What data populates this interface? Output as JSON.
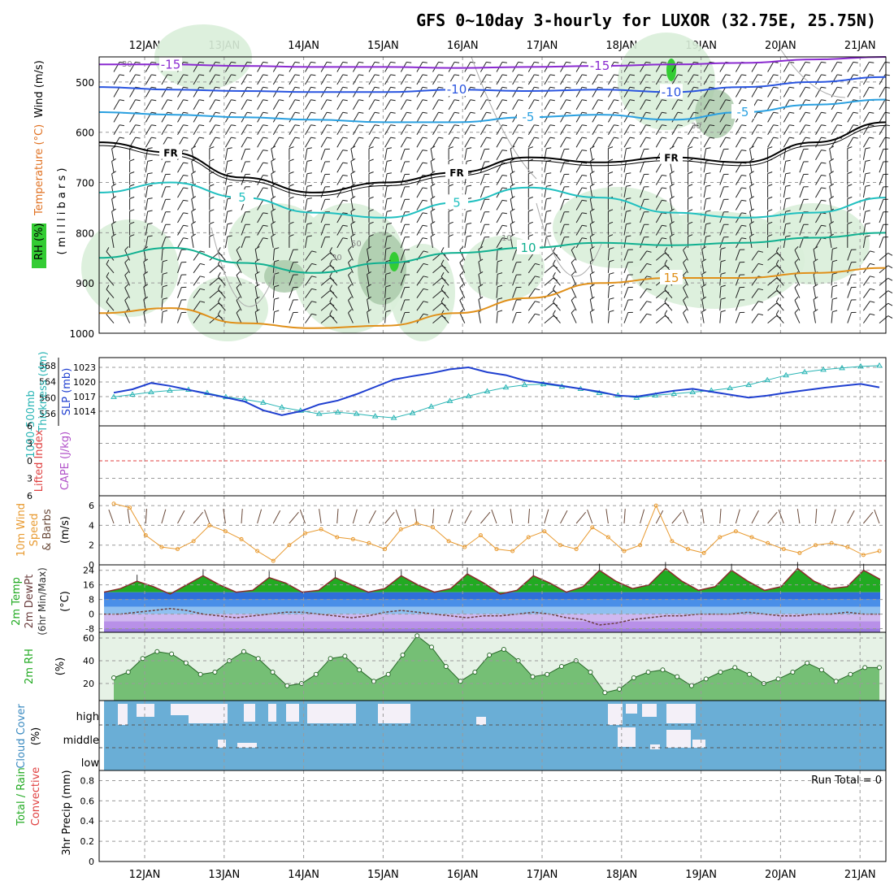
{
  "title": "GFS 0~10day 3-hourly for LUXOR (32.75E, 25.75N)",
  "run_total": "Run Total = 0",
  "colors": {
    "rh_fill": "#d9eed9",
    "rh_dark": "#a8c8a8",
    "rh_peak": "#33cc33",
    "slp": "#1f3fd0",
    "thickness": "#2ab5b5",
    "wind_speed": "#e89a30",
    "temp_warm": "#22aa22",
    "temp_top": "#f2e060",
    "cold_band_1": "#2f6fd8",
    "cold_band_2": "#8fc0f0",
    "cold_band_3": "#b890e8",
    "rh2m_fill": "#4fae4f",
    "cloud_fill": "#6aaed6",
    "cloud_clear": "#f4f0f8",
    "cape_line": "#e04040"
  },
  "chart_data": [
    {
      "type": "contour",
      "panel": "upper-air",
      "ylabel_parts": [
        "RH (%)",
        "Temperature (°C)",
        "Wind (m/s)"
      ],
      "yunit": "( m i l l i b a r s )",
      "yticks": [
        "500",
        "600",
        "700",
        "800",
        "900",
        "1000"
      ],
      "ylim": [
        450,
        1000
      ],
      "x_categories": [
        "12JAN",
        "13JAN",
        "14JAN",
        "15JAN",
        "16JAN",
        "17JAN",
        "18JAN",
        "19JAN",
        "20JAN",
        "21JAN"
      ],
      "isotherms": [
        {
          "label": "-15",
          "color": "#8a2ad0",
          "pressure": [
            465,
            465,
            468,
            470,
            470,
            472,
            470,
            468,
            465,
            462,
            455,
            450
          ]
        },
        {
          "label": "-10",
          "color": "#2a55e0",
          "pressure": [
            510,
            515,
            518,
            520,
            520,
            515,
            518,
            515,
            520,
            510,
            500,
            490
          ]
        },
        {
          "label": "-5",
          "color": "#2aa0e0",
          "pressure": [
            560,
            565,
            570,
            575,
            580,
            580,
            570,
            565,
            575,
            560,
            545,
            535
          ]
        },
        {
          "label": "FR",
          "color": "#000000",
          "pressure": [
            620,
            640,
            690,
            720,
            700,
            680,
            650,
            660,
            650,
            660,
            620,
            580
          ]
        },
        {
          "label": "5",
          "color": "#20c0c0",
          "pressure": [
            720,
            700,
            730,
            760,
            770,
            740,
            710,
            730,
            760,
            770,
            760,
            730
          ]
        },
        {
          "label": "10",
          "color": "#10b090",
          "pressure": [
            850,
            830,
            860,
            880,
            860,
            840,
            830,
            820,
            825,
            820,
            810,
            800
          ]
        },
        {
          "label": "15",
          "color": "#e0901a",
          "pressure": [
            960,
            950,
            980,
            990,
            985,
            960,
            930,
            900,
            890,
            890,
            880,
            870
          ]
        }
      ],
      "rh_labels": [
        "30",
        "50",
        "10",
        "30",
        "30"
      ]
    },
    {
      "type": "line",
      "panel": "pressure-thickness",
      "left_label": "1000-500mb Thickness (dm)",
      "right_label": "SLP (mb)",
      "left_ticks": [
        "568",
        "564",
        "560",
        "556"
      ],
      "slp_ticks": [
        "1023",
        "1020",
        "1017",
        "1014"
      ],
      "series": [
        {
          "name": "SLP (mb)",
          "color": "#1f3fd0",
          "values": [
            1017.8,
            1018.5,
            1019.8,
            1019.2,
            1018.4,
            1017.6,
            1016.8,
            1016.0,
            1014.2,
            1013.2,
            1014.0,
            1015.4,
            1016.2,
            1017.5,
            1019.0,
            1020.5,
            1021.2,
            1021.8,
            1022.6,
            1023.0,
            1022.0,
            1021.4,
            1020.3,
            1019.8,
            1019.2,
            1018.6,
            1018.0,
            1017.2,
            1017.0,
            1017.6,
            1018.2,
            1018.6,
            1018.0,
            1017.4,
            1016.8,
            1017.2,
            1017.8,
            1018.3,
            1018.8,
            1019.2,
            1019.6,
            1018.9
          ]
        },
        {
          "name": "1000-500mb Thickness (dm)",
          "color": "#2ab5b5",
          "values": [
            560.2,
            560.8,
            561.4,
            561.8,
            562.0,
            561.2,
            560.2,
            559.6,
            558.8,
            557.6,
            556.8,
            556.0,
            556.4,
            556.0,
            555.4,
            555.0,
            556.2,
            557.8,
            559.2,
            560.4,
            561.6,
            562.6,
            563.2,
            563.4,
            562.8,
            562.2,
            561.2,
            560.6,
            560.0,
            560.6,
            561.0,
            561.4,
            561.8,
            562.4,
            563.2,
            564.4,
            565.6,
            566.4,
            567.0,
            567.4,
            567.8,
            568.0
          ]
        }
      ]
    },
    {
      "type": "line",
      "panel": "stability",
      "left_label": "Lifted Index",
      "right_label": "CAPE (J/kg)",
      "yticks": [
        "6",
        "3",
        "0",
        "3",
        "6"
      ],
      "ylim": [
        -6,
        6
      ],
      "series": [
        {
          "name": "Lifted Index",
          "color": "#e04040",
          "values": [
            0,
            0
          ]
        }
      ]
    },
    {
      "type": "line",
      "panel": "surface-wind",
      "ylabel_parts": [
        "10m Wind",
        "Speed",
        "& Barbs"
      ],
      "yunit": "(m/s)",
      "yticks": [
        "6",
        "4",
        "2",
        "0"
      ],
      "ylim": [
        0,
        7
      ],
      "series": [
        {
          "name": "10m Wind Speed",
          "color": "#e89a30",
          "values": [
            6.2,
            5.8,
            3.0,
            1.8,
            1.6,
            2.4,
            4.0,
            3.4,
            2.6,
            1.4,
            0.4,
            2.0,
            3.2,
            3.6,
            2.8,
            2.6,
            2.2,
            1.6,
            3.6,
            4.2,
            3.8,
            2.4,
            1.8,
            3.0,
            1.6,
            1.4,
            2.8,
            3.4,
            2.0,
            1.6,
            3.8,
            2.8,
            1.4,
            2.0,
            6.0,
            2.4,
            1.6,
            1.2,
            2.8,
            3.4,
            2.8,
            2.2,
            1.6,
            1.2,
            2.0,
            2.2,
            1.8,
            1.0,
            1.4
          ]
        }
      ]
    },
    {
      "type": "area",
      "panel": "temperature",
      "ylabel_parts": [
        "2m Temp",
        "2m DewPt",
        "(6hr Min/Max)"
      ],
      "yunit": "(°C)",
      "yticks": [
        "24",
        "16",
        "8",
        "0",
        "-8"
      ],
      "ylim": [
        -10,
        27
      ],
      "series": [
        {
          "name": "2m Temp",
          "color": "#22aa22",
          "values": [
            12,
            14,
            18,
            15,
            11,
            16,
            21,
            16,
            12,
            13,
            20,
            17,
            12,
            13,
            20,
            16,
            12,
            14,
            21,
            16,
            12,
            14,
            22,
            17,
            11,
            13,
            21,
            17,
            12,
            15,
            24,
            18,
            14,
            16,
            25,
            18,
            13,
            15,
            24,
            18,
            13,
            15,
            25,
            18,
            14,
            15,
            24,
            19
          ]
        },
        {
          "name": "2m DewPt",
          "color": "#6a3d3d",
          "values": [
            0,
            0,
            1,
            2,
            3,
            2,
            0,
            -1,
            -2,
            -1,
            0,
            1,
            1,
            0,
            -1,
            -2,
            -1,
            1,
            2,
            1,
            0,
            -1,
            -2,
            -1,
            -1,
            0,
            1,
            0,
            -2,
            -3,
            -6,
            -5,
            -3,
            -2,
            -1,
            -1,
            0,
            0,
            0,
            1,
            0,
            -1,
            -1,
            0,
            0,
            1,
            0,
            0
          ]
        }
      ]
    },
    {
      "type": "area",
      "panel": "relative-humidity",
      "ylabel": "2m RH",
      "yunit": "(%)",
      "yticks": [
        "60",
        "40",
        "20"
      ],
      "ylim": [
        5,
        65
      ],
      "series": [
        {
          "name": "2m RH",
          "color": "#4fae4f",
          "values": [
            25,
            30,
            42,
            48,
            46,
            38,
            28,
            30,
            40,
            48,
            42,
            30,
            18,
            20,
            28,
            42,
            44,
            32,
            22,
            28,
            45,
            62,
            52,
            35,
            22,
            30,
            45,
            50,
            40,
            26,
            28,
            35,
            40,
            30,
            12,
            15,
            25,
            30,
            32,
            26,
            18,
            24,
            30,
            34,
            28,
            20,
            24,
            30,
            38,
            32,
            22,
            28,
            34,
            34
          ]
        }
      ]
    },
    {
      "type": "heatmap",
      "panel": "cloud-cover",
      "ylabel": "Cloud Cover",
      "yunit": "(%)",
      "rows": [
        "high",
        "middle",
        "low"
      ]
    },
    {
      "type": "bar",
      "panel": "precipitation",
      "ylabel_parts": [
        "Total / Rain",
        "Convective"
      ],
      "yunit": "3hr Precip (mm)",
      "yticks": [
        "0.8",
        "0.6",
        "0.4",
        "0.2",
        "0"
      ],
      "ylim": [
        0,
        0.9
      ],
      "values": []
    }
  ]
}
